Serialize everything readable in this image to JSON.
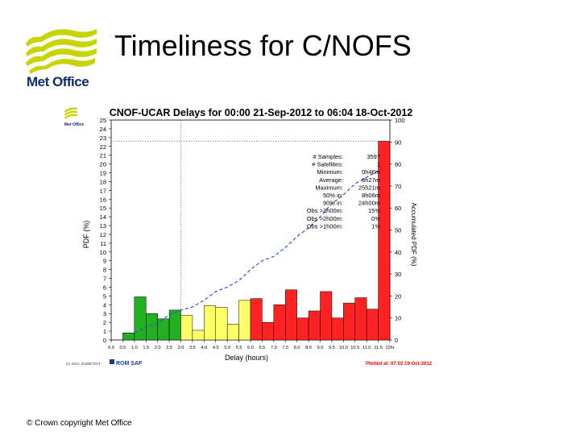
{
  "slide": {
    "title": "Timeliness for C/NOFS",
    "logo_text": "Met Office",
    "footer": "© Crown copyright   Met Office"
  },
  "colors": {
    "logo_green": "#c8d400",
    "logo_text": "#0b2d6b",
    "green_bar": "#22b022",
    "yellow_bar": "#ffff66",
    "red_bar": "#ff2222",
    "cumulative_line": "#3050d0",
    "plotted_text": "#ff0000"
  },
  "chart_data": {
    "type": "bar",
    "title": "CNOF-UCAR Delays for 00:00 21-Sep-2012 to 06:04 18-Oct-2012",
    "xlabel": "Delay (hours)",
    "ylabel": "PDF (%)",
    "y2label": "Accumulated PDF (%)",
    "ylim": [
      0,
      25
    ],
    "y2lim": [
      0,
      100
    ],
    "yticks": [
      0,
      1,
      2,
      3,
      4,
      5,
      6,
      7,
      8,
      9,
      10,
      11,
      12,
      13,
      14,
      15,
      16,
      17,
      18,
      19,
      20,
      21,
      22,
      23,
      24,
      25
    ],
    "y2ticks": [
      0,
      10,
      20,
      30,
      40,
      50,
      60,
      70,
      80,
      90,
      100
    ],
    "categories": [
      "0.0-0.5",
      "0.5-1.0",
      "1.0-1.5",
      "1.5-2.0",
      "2.0-2.5",
      "2.5-3.0",
      "3.0-3.5",
      "3.5-4.0",
      "4.0-4.5",
      "4.5-5.0",
      "5.0-5.5",
      "5.5-6.0",
      "6.0-6.5",
      "6.5-7.0",
      "7.0-7.5",
      "7.5-8.0",
      "8.0-8.5",
      "8.5-9.0",
      "9.0-9.5",
      "9.5-10.0",
      "10.0-10.5",
      "10.5-11.0",
      "11.0-11.5",
      "11.5-12hr"
    ],
    "x_tick_labels": [
      "0.0",
      "0.5",
      "1.0",
      "1.5",
      "2.0",
      "2.5",
      "3.0",
      "3.5",
      "4.0",
      "4.5",
      "5.0",
      "5.5",
      "6.0",
      "6.5",
      "7.0",
      "7.5",
      "8.0",
      "8.5",
      "9.0",
      "9.5",
      "10.0",
      "10.5",
      "11.0",
      "11.5",
      "12hr"
    ],
    "values": [
      0,
      0.8,
      4.9,
      3.0,
      2.4,
      3.4,
      2.8,
      1.1,
      3.9,
      3.7,
      1.8,
      4.5,
      4.7,
      2.0,
      4.0,
      5.7,
      2.5,
      3.3,
      5.5,
      2.5,
      4.2,
      4.8,
      3.5,
      22.6
    ],
    "bar_colors": [
      "green",
      "green",
      "green",
      "green",
      "green",
      "green",
      "yellow",
      "yellow",
      "yellow",
      "yellow",
      "yellow",
      "yellow",
      "red",
      "red",
      "red",
      "red",
      "red",
      "red",
      "red",
      "red",
      "red",
      "red",
      "red",
      "red"
    ],
    "cumulative": {
      "x": [
        1.0,
        1.5,
        2.0,
        2.5,
        3.0,
        3.5,
        4.0,
        4.5,
        5.0,
        5.5,
        6.0,
        6.5,
        7.0,
        7.5,
        8.0,
        8.5,
        9.0,
        9.5,
        10.0,
        10.5,
        11.0,
        11.5
      ],
      "values": [
        3.5,
        5.5,
        7.5,
        11.5,
        13.5,
        15,
        18,
        22,
        24,
        27,
        32,
        36,
        38,
        42,
        47,
        51,
        56,
        62,
        66,
        71,
        74,
        77
      ]
    },
    "ref_lines": {
      "x": 3.0,
      "y": 22.6
    },
    "stats": [
      {
        "label": "# Samples:",
        "value": "3597"
      },
      {
        "label": "# Satellites:",
        "value": "1"
      },
      {
        "label": "Minimum:",
        "value": "0h46m"
      },
      {
        "label": "Average:",
        "value": "8h27m"
      },
      {
        "label": "Maximum:",
        "value": "25h21m"
      },
      {
        "label": "50% in:",
        "value": "8h06m"
      },
      {
        "label": "90% in:",
        "value": "24h00m"
      },
      {
        "label": "Obs >3h00m:",
        "value": "15%"
      },
      {
        "label": "Obs >2h00m:",
        "value": "0%"
      },
      {
        "label": "Obs >1h00m:",
        "value": "1%"
      }
    ],
    "bottom_left_text": "(c) 2012, EUMETSAT",
    "rom_saf_label": "ROM SAF",
    "plotted_label": "Plotted at: 07:02 19-Oct-2012",
    "small_logo_text": "Met Office"
  }
}
